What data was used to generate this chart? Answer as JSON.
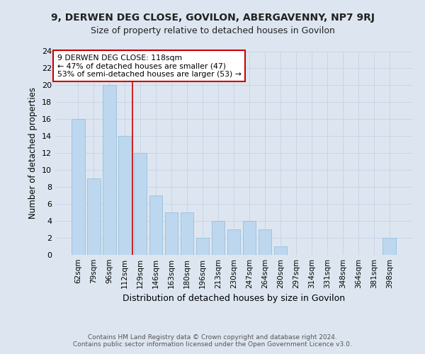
{
  "title": "9, DERWEN DEG CLOSE, GOVILON, ABERGAVENNY, NP7 9RJ",
  "subtitle": "Size of property relative to detached houses in Govilon",
  "xlabel": "Distribution of detached houses by size in Govilon",
  "ylabel": "Number of detached properties",
  "categories": [
    "62sqm",
    "79sqm",
    "96sqm",
    "112sqm",
    "129sqm",
    "146sqm",
    "163sqm",
    "180sqm",
    "196sqm",
    "213sqm",
    "230sqm",
    "247sqm",
    "264sqm",
    "280sqm",
    "297sqm",
    "314sqm",
    "331sqm",
    "348sqm",
    "364sqm",
    "381sqm",
    "398sqm"
  ],
  "values": [
    16,
    9,
    20,
    14,
    12,
    7,
    5,
    5,
    2,
    4,
    3,
    4,
    3,
    1,
    0,
    0,
    0,
    0,
    0,
    0,
    2
  ],
  "bar_color": "#bdd7ee",
  "bar_edge_color": "#9ec4e0",
  "annotation_text_line1": "9 DERWEN DEG CLOSE: 118sqm",
  "annotation_text_line2": "← 47% of detached houses are smaller (47)",
  "annotation_text_line3": "53% of semi-detached houses are larger (53) →",
  "annotation_box_color": "#ffffff",
  "annotation_box_edge_color": "#cc0000",
  "vline_color": "#cc0000",
  "vline_x": 3.5,
  "ylim": [
    0,
    24
  ],
  "yticks": [
    0,
    2,
    4,
    6,
    8,
    10,
    12,
    14,
    16,
    18,
    20,
    22,
    24
  ],
  "grid_color": "#c8d4e8",
  "background_color": "#dde6f0",
  "plot_bg_color": "#dde6f0",
  "footer_line1": "Contains HM Land Registry data © Crown copyright and database right 2024.",
  "footer_line2": "Contains public sector information licensed under the Open Government Licence v3.0."
}
